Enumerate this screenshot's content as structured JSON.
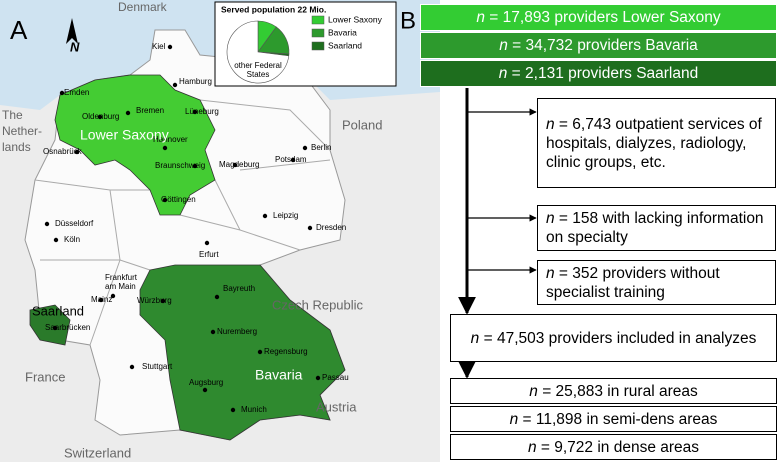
{
  "panel_a": {
    "label": "A",
    "north": "N",
    "pie": {
      "title": "Served population 22 Mio.",
      "slices": [
        {
          "label": "Lower Saxony",
          "color": "#33cc33",
          "value": 10
        },
        {
          "label": "Bavaria",
          "color": "#2d9a2d",
          "value": 16
        },
        {
          "label": "Saarland",
          "color": "#1e6e1e",
          "value": 1
        },
        {
          "label": [
            "other Federal",
            "States"
          ],
          "color": "#ffffff",
          "value": 73
        }
      ]
    },
    "regions": [
      {
        "label": "Lower Saxony",
        "color": "#44cc33"
      },
      {
        "label": "Bavaria",
        "color": "#2f8a2f"
      },
      {
        "label": "Saarland",
        "color": "#2a7a2a"
      }
    ],
    "countries": [
      [
        "Denmark"
      ],
      [
        "The",
        "Nether-",
        "lands"
      ],
      [
        "Poland"
      ],
      [
        "Czech Republic"
      ],
      [
        "France"
      ],
      [
        "Austria"
      ],
      [
        "Switzerland"
      ]
    ],
    "cities": [
      [
        "Kiel"
      ],
      [
        "Hamburg"
      ],
      [
        "Emden"
      ],
      [
        "Bremen"
      ],
      [
        "Oldenburg"
      ],
      [
        "Lüneburg"
      ],
      [
        "Hannover"
      ],
      [
        "Osnabrück"
      ],
      [
        "Braunschweig"
      ],
      [
        "Magdeburg"
      ],
      [
        "Berlin"
      ],
      [
        "Potsdam"
      ],
      [
        "Göttingen"
      ],
      [
        "Düsseldorf"
      ],
      [
        "Köln"
      ],
      [
        "Leipzig"
      ],
      [
        "Dresden"
      ],
      [
        "Erfurt"
      ],
      [
        "Frankfurt",
        "am Main"
      ],
      [
        "Mainz"
      ],
      [
        "Würzburg"
      ],
      [
        "Bayreuth"
      ],
      [
        "Nuremberg"
      ],
      [
        "Regensburg"
      ],
      [
        "Saarbrücken"
      ],
      [
        "Stuttgart"
      ],
      [
        "Augsburg"
      ],
      [
        "Munich"
      ],
      [
        "Passau"
      ]
    ]
  },
  "panel_b": {
    "label": "B",
    "sources": [
      "n = 17,893 providers Lower Saxony",
      "n = 34,732 providers Bavaria",
      "n = 2,131 providers Saarland"
    ],
    "exclusions": [
      "n = 6,743 outpatient services of hospitals, dialyzes, radiology, clinic groups, etc.",
      "n = 158 with lacking information on specialty",
      "n = 352 providers without specialist training"
    ],
    "included": "n = 47,503 providers included in analyzes",
    "areas": [
      "n = 25,883 in rural areas",
      "n = 11,898 in semi-dens areas",
      "n = 9,722 in dense areas"
    ]
  }
}
